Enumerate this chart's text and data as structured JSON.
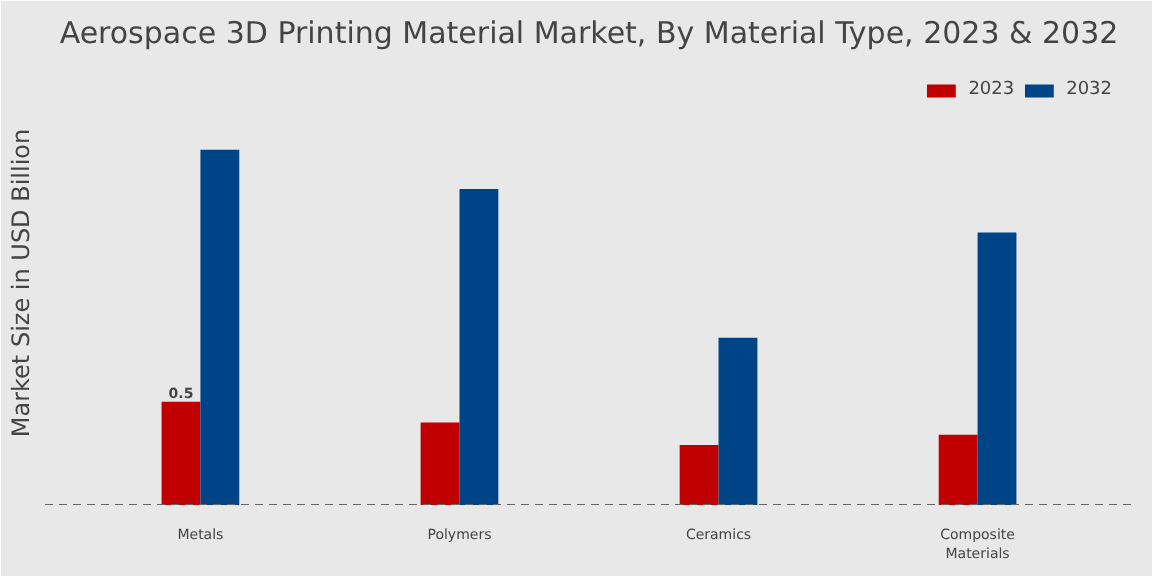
{
  "chart_data": {
    "type": "bar",
    "title": "Aerospace 3D Printing Material Market, By Material Type, 2023 & 2032",
    "ylabel": "Market Size in USD Billion",
    "categories": [
      "Metals",
      "Polymers",
      "Ceramics",
      "Composite\nMaterials"
    ],
    "legend": "top right",
    "series": [
      {
        "name": "2023",
        "color": "#c00000",
        "values": [
          0.5,
          0.4,
          0.29,
          0.34
        ],
        "value_labels": [
          "0.5",
          null,
          null,
          null
        ]
      },
      {
        "name": "2032",
        "color": "#004488",
        "values": [
          1.72,
          1.53,
          0.81,
          1.32
        ]
      }
    ]
  }
}
